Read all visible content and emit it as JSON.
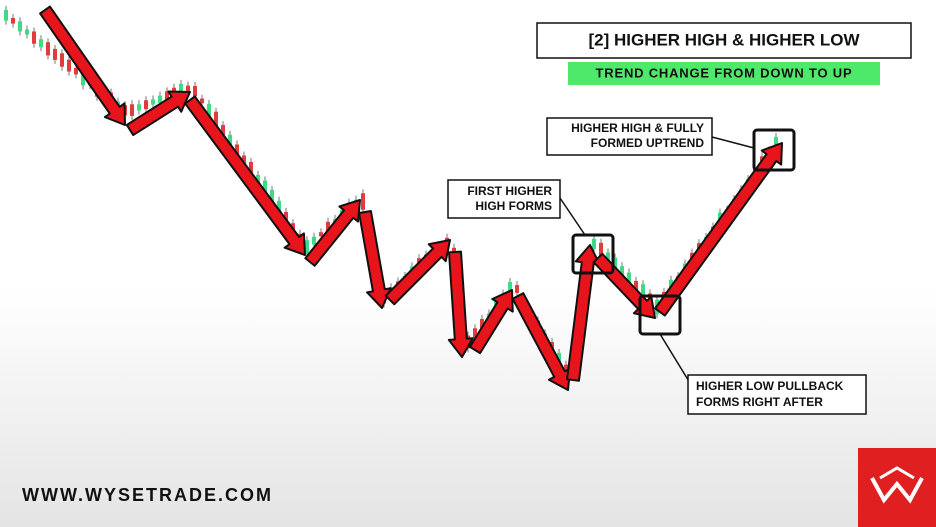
{
  "header": {
    "title": "[2] HIGHER HIGH & HIGHER LOW",
    "subtitle": "TREND CHANGE FROM DOWN TO UP"
  },
  "annotations": [
    {
      "lines": [
        "HIGHER HIGH & FULLY",
        "FORMED UPTREND"
      ]
    },
    {
      "lines": [
        "FIRST HIGHER",
        "HIGH FORMS"
      ]
    },
    {
      "lines": [
        "HIGHER LOW PULLBACK",
        "FORMS RIGHT AFTER"
      ]
    }
  ],
  "footer": {
    "website": "WWW.WYSETRADE.COM"
  }
}
